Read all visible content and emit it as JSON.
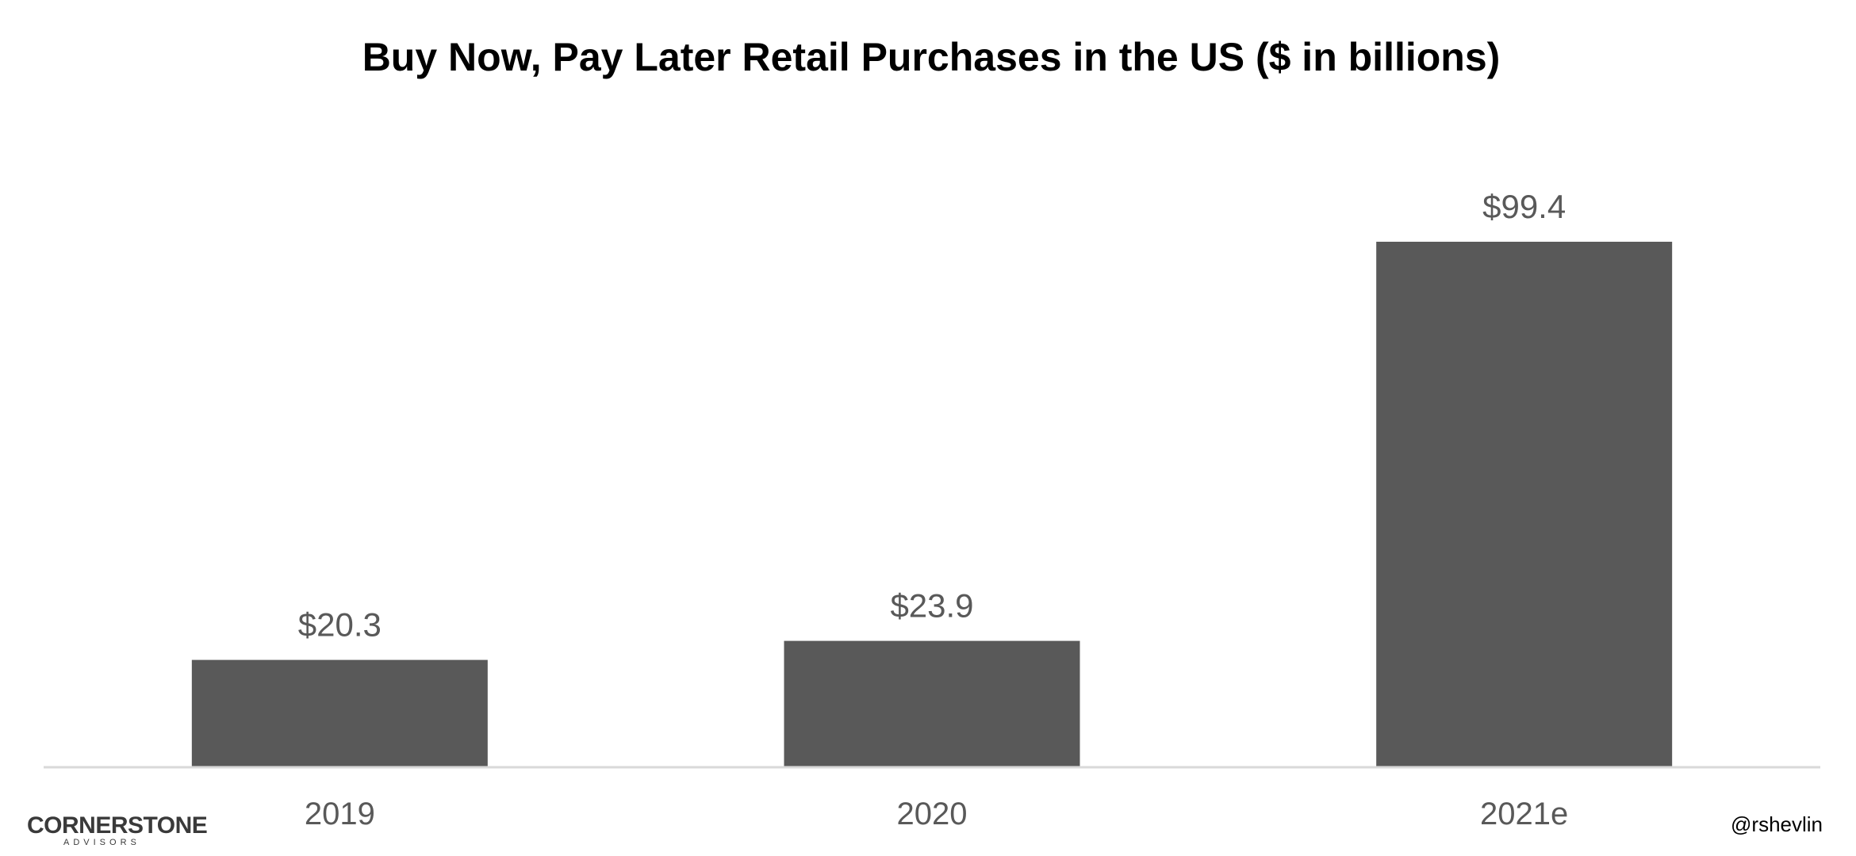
{
  "chart_data": {
    "type": "bar",
    "title": "Buy Now, Pay Later Retail Purchases in the US ($ in billions)",
    "categories": [
      "2019",
      "2020",
      "2021e"
    ],
    "values": [
      20.3,
      23.9,
      99.4
    ],
    "data_labels": [
      "$20.3",
      "$23.9",
      "$99.4"
    ],
    "xlabel": "",
    "ylabel": "",
    "ylim": [
      0,
      120
    ],
    "grid": false,
    "legend": "none",
    "bar_color": "#595959",
    "axis_color": "#d9d9d9"
  },
  "branding": {
    "logo_main": "CORNERSTONE",
    "logo_sub": "ADVISORS",
    "handle": "@rshevlin"
  }
}
